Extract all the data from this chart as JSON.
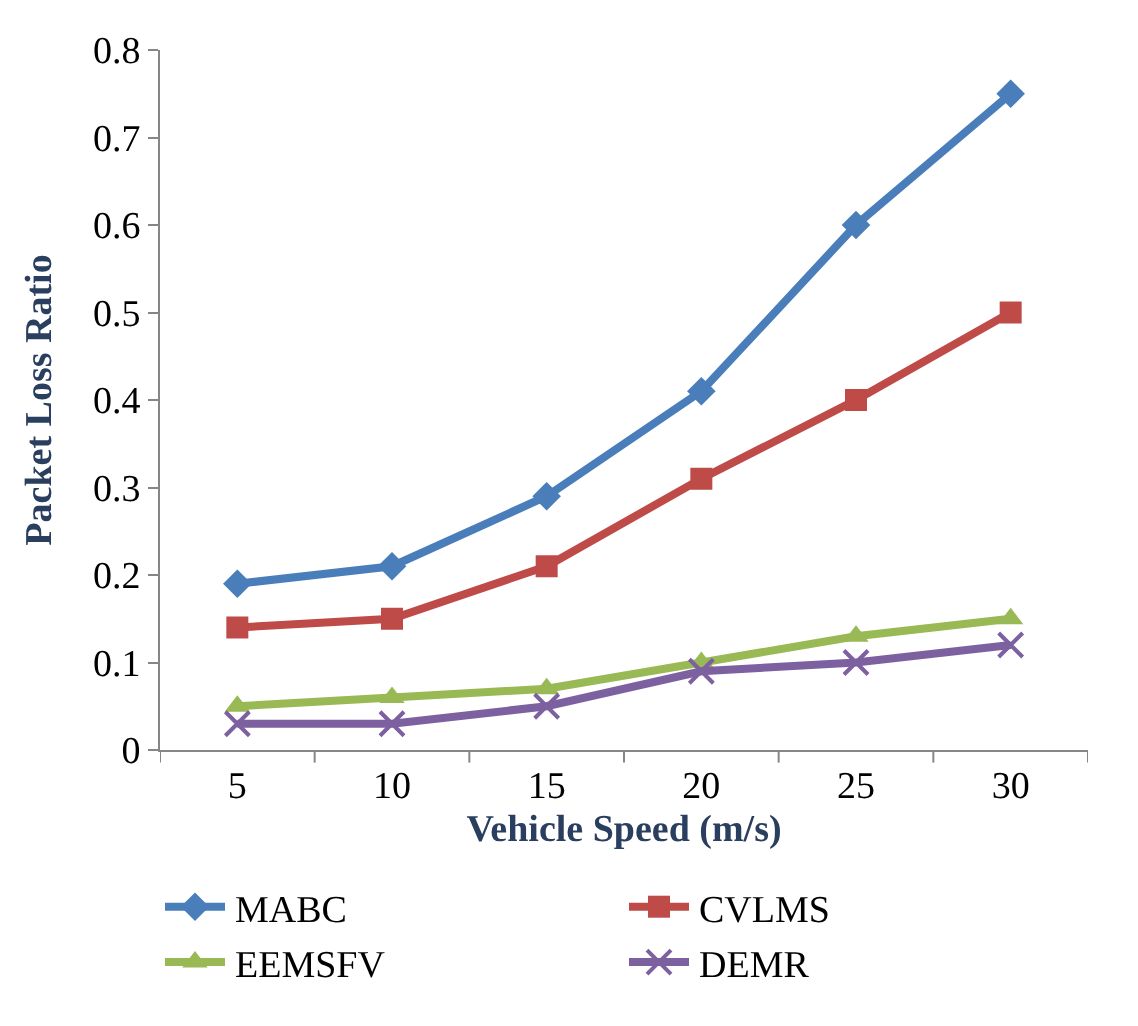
{
  "chart_data": {
    "type": "line",
    "xlabel": "Vehicle Speed (m/s)",
    "ylabel": "Packet Loss Ratio",
    "categories": [
      "5",
      "10",
      "15",
      "20",
      "25",
      "30"
    ],
    "series": [
      {
        "name": "MABC",
        "color": "#4a7ebb",
        "marker": "diamond",
        "values": [
          0.19,
          0.21,
          0.29,
          0.41,
          0.6,
          0.75
        ]
      },
      {
        "name": "CVLMS",
        "color": "#be4b48",
        "marker": "square",
        "values": [
          0.14,
          0.15,
          0.21,
          0.31,
          0.4,
          0.5
        ]
      },
      {
        "name": "EEMSFV",
        "color": "#98b954",
        "marker": "triangle",
        "values": [
          0.05,
          0.06,
          0.07,
          0.1,
          0.13,
          0.15
        ]
      },
      {
        "name": "DEMR",
        "color": "#7d60a0",
        "marker": "cross",
        "values": [
          0.03,
          0.03,
          0.05,
          0.09,
          0.1,
          0.12
        ]
      }
    ],
    "ylim": [
      0,
      0.8
    ],
    "yticks": [
      0,
      0.1,
      0.2,
      0.3,
      0.4,
      0.5,
      0.6,
      0.7,
      0.8
    ],
    "grid": false,
    "legend": "bottom",
    "line_style": "solid"
  }
}
